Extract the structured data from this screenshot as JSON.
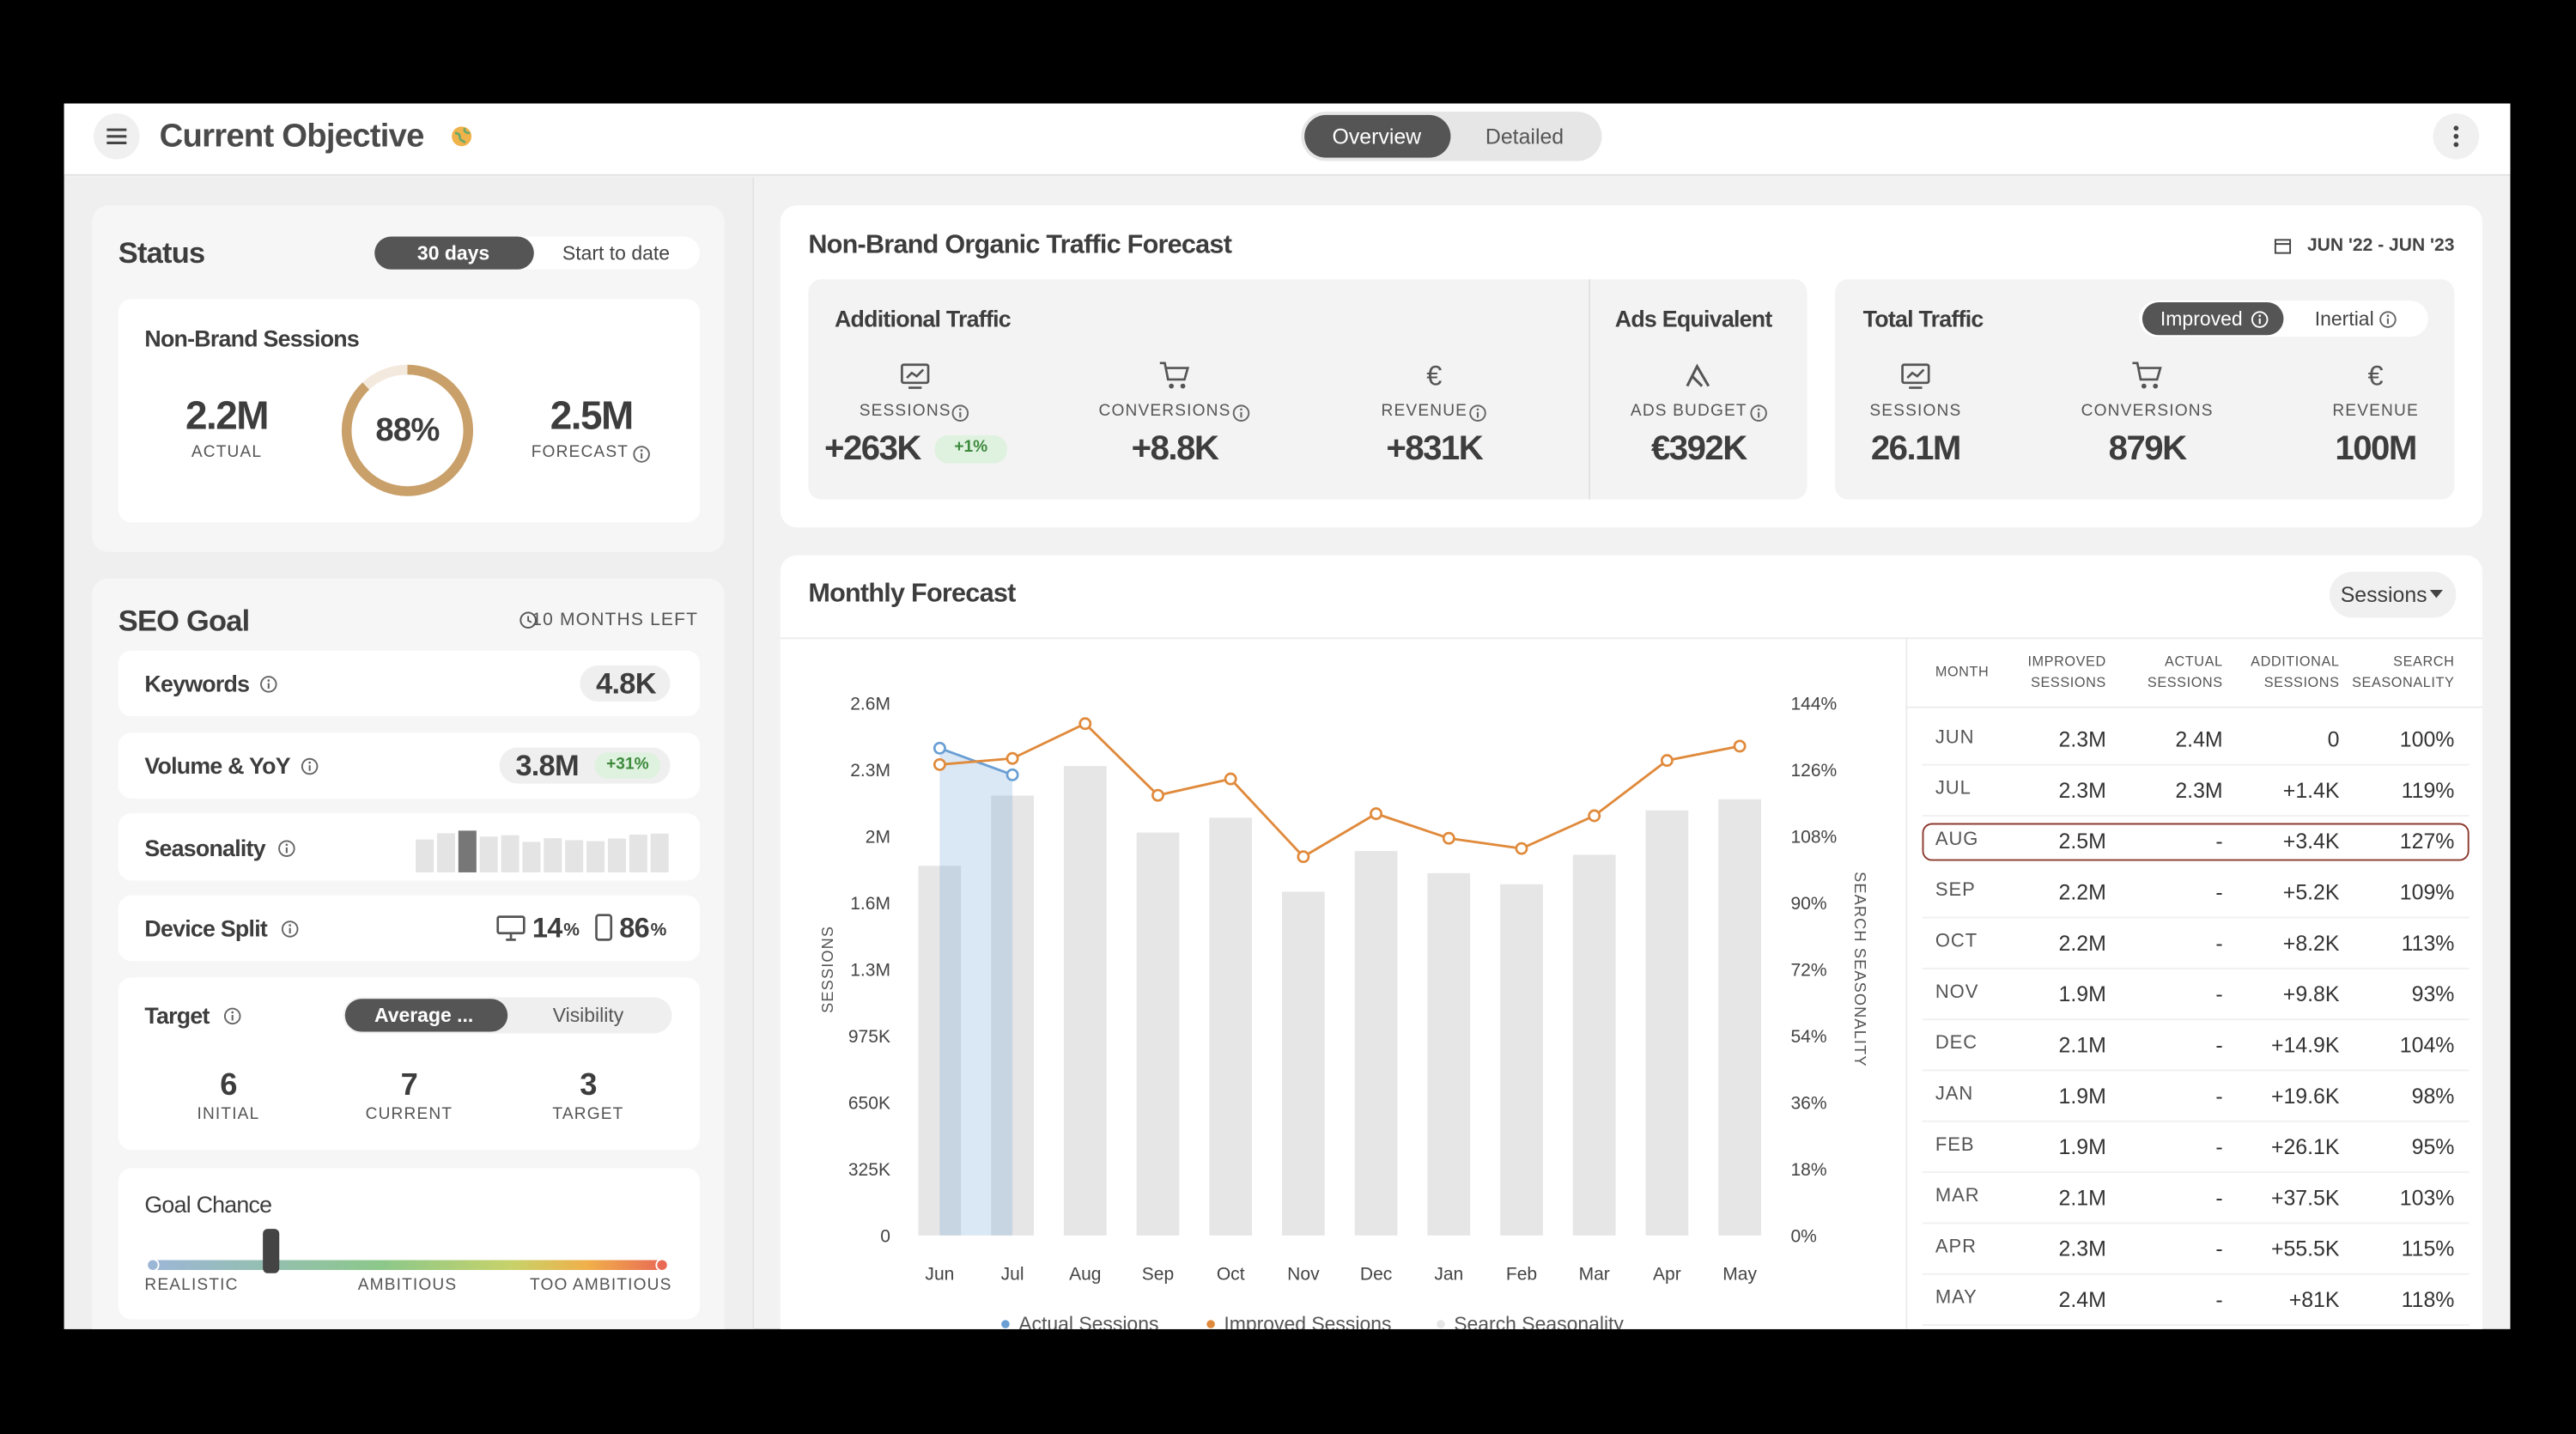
{
  "header": {
    "title": "Current Objective",
    "tabs": [
      "Overview",
      "Detailed"
    ]
  },
  "status": {
    "title": "Status",
    "ranges": [
      "30 days",
      "Start to date"
    ],
    "metric": "Non-Brand Sessions",
    "actual": {
      "value": "2.2M",
      "label": "ACTUAL"
    },
    "progress": {
      "value": 88,
      "label": "88%"
    },
    "forecast": {
      "value": "2.5M",
      "label": "FORECAST"
    }
  },
  "seo_goal": {
    "title": "SEO Goal",
    "time_left": "10 MONTHS LEFT",
    "keywords": {
      "label": "Keywords",
      "value": "4.8K"
    },
    "volume": {
      "label": "Volume & YoY",
      "value": "3.8M",
      "change": "+31%"
    },
    "seasonality": {
      "label": "Seasonality"
    },
    "device_split": {
      "label": "Device Split",
      "desktop": {
        "value": "14",
        "unit": "%"
      },
      "mobile": {
        "value": "86",
        "unit": "%"
      }
    },
    "target": {
      "label": "Target",
      "modes": [
        "Average ...",
        "Visibility"
      ],
      "items": [
        {
          "value": "6",
          "label": "INITIAL"
        },
        {
          "value": "7",
          "label": "CURRENT"
        },
        {
          "value": "3",
          "label": "TARGET"
        }
      ]
    },
    "goal_chance": {
      "label": "Goal Chance",
      "position": 23,
      "scale": [
        "REALISTIC",
        "AMBITIOUS",
        "TOO AMBITIOUS"
      ]
    }
  },
  "traffic_forecast": {
    "title": "Non-Brand Organic Traffic Forecast",
    "date_range": "JUN '22 - JUN '23",
    "additional": {
      "title": "Additional Traffic",
      "items": [
        {
          "label": "SESSIONS",
          "value": "+263K",
          "badge": "+1%"
        },
        {
          "label": "CONVERSIONS",
          "value": "+8.8K"
        },
        {
          "label": "REVENUE",
          "value": "+831K",
          "symbol": "€"
        }
      ]
    },
    "ads": {
      "title": "Ads Equivalent",
      "label": "ADS BUDGET",
      "value": "€392K"
    },
    "total": {
      "title": "Total Traffic",
      "modes": [
        "Improved",
        "Inertial"
      ],
      "items": [
        {
          "label": "SESSIONS",
          "value": "26.1M"
        },
        {
          "label": "CONVERSIONS",
          "value": "879K"
        },
        {
          "label": "REVENUE",
          "value": "100M",
          "symbol": "€"
        }
      ]
    }
  },
  "monthly_forecast": {
    "title": "Monthly Forecast",
    "metric_menu": "Sessions",
    "table": {
      "columns": [
        "MONTH",
        "IMPROVED SESSIONS",
        "ACTUAL SESSIONS",
        "ADDITIONAL SESSIONS",
        "SEARCH SEASONALITY"
      ],
      "rows": [
        [
          "JUN",
          "2.3M",
          "2.4M",
          "0",
          "100%"
        ],
        [
          "JUL",
          "2.3M",
          "2.3M",
          "+1.4K",
          "119%"
        ],
        [
          "AUG",
          "2.5M",
          "-",
          "+3.4K",
          "127%"
        ],
        [
          "SEP",
          "2.2M",
          "-",
          "+5.2K",
          "109%"
        ],
        [
          "OCT",
          "2.2M",
          "-",
          "+8.2K",
          "113%"
        ],
        [
          "NOV",
          "1.9M",
          "-",
          "+9.8K",
          "93%"
        ],
        [
          "DEC",
          "2.1M",
          "-",
          "+14.9K",
          "104%"
        ],
        [
          "JAN",
          "1.9M",
          "-",
          "+19.6K",
          "98%"
        ],
        [
          "FEB",
          "1.9M",
          "-",
          "+26.1K",
          "95%"
        ],
        [
          "MAR",
          "2.1M",
          "-",
          "+37.5K",
          "103%"
        ],
        [
          "APR",
          "2.3M",
          "-",
          "+55.5K",
          "115%"
        ],
        [
          "MAY",
          "2.4M",
          "-",
          "+81K",
          "118%"
        ]
      ]
    }
  },
  "chart_data": {
    "type": "combo",
    "y_label": "SESSIONS",
    "y2_label": "SEARCH SEASONALITY",
    "categories": [
      "Jun",
      "Jul",
      "Aug",
      "Sep",
      "Oct",
      "Nov",
      "Dec",
      "Jan",
      "Feb",
      "Mar",
      "Apr",
      "May"
    ],
    "series": [
      {
        "name": "Actual Sessions",
        "color": "#6a9fd4",
        "area": true,
        "values": [
          2380000,
          2250000,
          null,
          null,
          null,
          null,
          null,
          null,
          null,
          null,
          null,
          null
        ]
      },
      {
        "name": "Improved Sessions",
        "color": "#e08a3c",
        "values": [
          2300000,
          2330000,
          2500000,
          2150000,
          2230000,
          1850000,
          2060000,
          1940000,
          1890000,
          2050000,
          2320000,
          2390000
        ]
      },
      {
        "name": "Search Seasonality",
        "color": "#e6e6e6",
        "axis": "y2",
        "values": [
          100,
          119,
          127,
          109,
          113,
          93,
          104,
          98,
          95,
          103,
          115,
          118
        ]
      }
    ],
    "ylim": [
      0,
      2600000
    ],
    "yticks": [
      0,
      {
        "value": 325000,
        "label": "325K"
      },
      {
        "value": 650000,
        "label": "650K"
      },
      {
        "value": 975000,
        "label": "975K"
      },
      {
        "value": 1300000,
        "label": "1.3M"
      },
      {
        "value": 1625000,
        "label": "1.6M"
      },
      {
        "value": 1950000,
        "label": "2M"
      },
      {
        "value": 2275000,
        "label": "2.3M"
      },
      {
        "value": 2600000,
        "label": "2.6M"
      }
    ],
    "y2lim": [
      0,
      144
    ],
    "y2ticks": [
      {
        "value": 0,
        "label": "0%"
      },
      {
        "value": 18,
        "label": "18%"
      },
      {
        "value": 36,
        "label": "36%"
      },
      {
        "value": 54,
        "label": "54%"
      },
      {
        "value": 72,
        "label": "72%"
      },
      {
        "value": 90,
        "label": "90%"
      },
      {
        "value": 108,
        "label": "108%"
      },
      {
        "value": 126,
        "label": "126%"
      },
      {
        "value": 144,
        "label": "144%"
      }
    ]
  }
}
